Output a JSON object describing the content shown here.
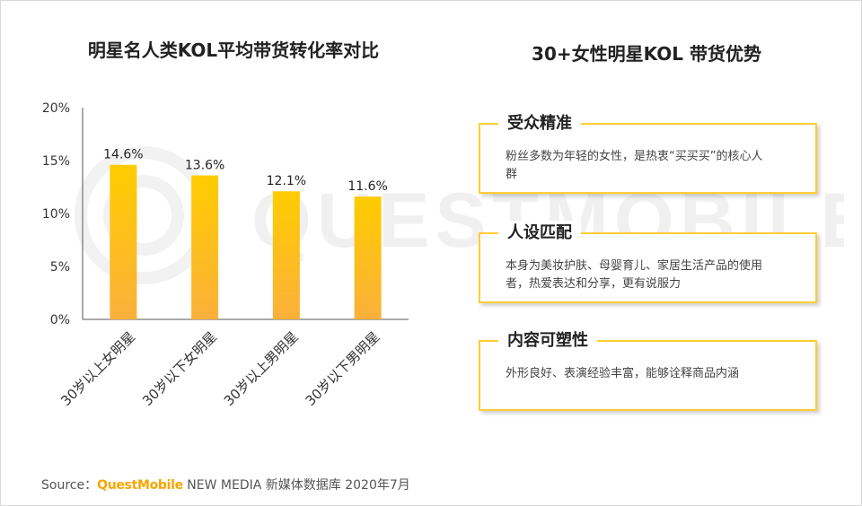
{
  "left_panel": {
    "title": "明星名人类KOL平均带货转化率对比"
  },
  "chart_data": {
    "type": "bar",
    "title": "明星名人类KOL平均带货转化率对比",
    "categories": [
      "30岁以上女明星",
      "30岁以下女明星",
      "30岁以上男明星",
      "30岁以下男明星"
    ],
    "values": [
      14.6,
      13.6,
      12.1,
      11.6
    ],
    "data_labels": [
      "14.6%",
      "13.6%",
      "12.1%",
      "11.6%"
    ],
    "y_ticks": [
      0,
      5,
      10,
      15,
      20
    ],
    "y_tick_labels": [
      "0%",
      "5%",
      "10%",
      "15%",
      "20%"
    ],
    "ylim": [
      0,
      20
    ],
    "xlabel": "",
    "ylabel": "",
    "grid": false,
    "bar_color_top": "#ffcc00",
    "bar_color_bottom": "#fbb03b"
  },
  "right_panel": {
    "title": "30+女性明星KOL 带货优势",
    "cards": [
      {
        "title": "受众精准",
        "body": "粉丝多数为年轻的女性，是热衷“买买买”的核心人群"
      },
      {
        "title": "人设匹配",
        "body": "本身为美妆护肤、母婴育儿、家居生活产品的使用者，热爱表达和分享，更有说服力"
      },
      {
        "title": "内容可塑性",
        "body": "外形良好、表演经验丰富，能够诠释商品内涵"
      }
    ]
  },
  "footer": {
    "source_prefix": "Source：",
    "brand": "QuestMobile",
    "source_rest": " NEW MEDIA 新媒体数据库 2020年7月"
  },
  "watermark": {
    "text": "QUESTMOBILE"
  },
  "colors": {
    "accent": "#ffcc33",
    "brand": "#f7a600",
    "axis": "#555555"
  }
}
